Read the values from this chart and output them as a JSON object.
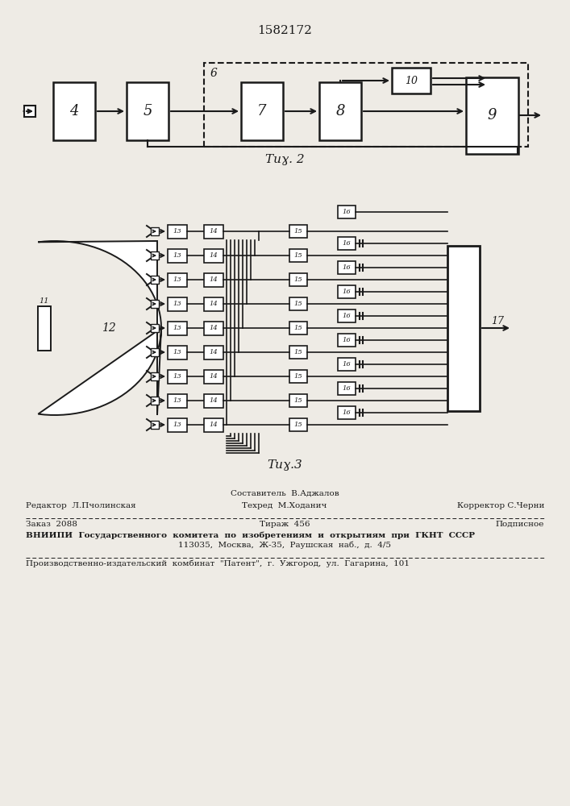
{
  "patent_number": "1582172",
  "bg_color": "#eeebe5",
  "line_color": "#1a1a1a",
  "fig2_caption": "Τиɣ. 2",
  "fig3_caption": "Τиɣ.3",
  "footer": {
    "line1_center": "Составитель  В.Аджалов",
    "line2_left": "Редактор  Л.Пчолинская",
    "line2_center": "Техред  М.Ходанич",
    "line2_right": "Корректор С.Черни",
    "line3_left": "Заказ  2088",
    "line3_center": "Тираж  456",
    "line3_right": "Подписное",
    "line4": "ВНИИПИ  Государственного  комитета  по  изобретениям  и  открытиям  при  ГКНТ  СССР",
    "line5": "113035,  Москва,  Ж-35,  Раушская  наб.,  д.  4/5",
    "line6": "Производственно-издательский  комбинат  \"Патент\",  г.  Ужгород,  ул.  Гагарина,  101"
  }
}
